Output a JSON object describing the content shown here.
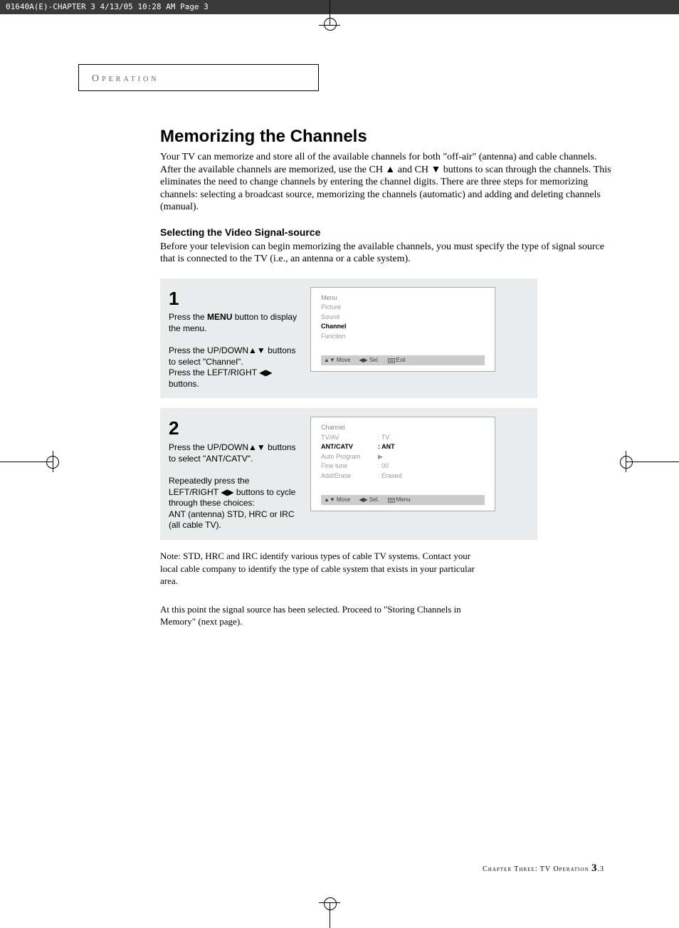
{
  "header_bar": "01640A(E)-CHAPTER 3  4/13/05  10:28 AM  Page 3",
  "section_label": "Operation",
  "title": "Memorizing the Channels",
  "intro": "Your TV can memorize and store all of the available channels for both \"off-air\" (antenna) and cable channels. After the available channels are memorized, use the CH ▲ and CH ▼ buttons to scan through the channels. This eliminates the need to change channels by entering the channel digits. There are three steps for memorizing channels: selecting a broadcast source, memorizing the channels (automatic) and adding and deleting channels (manual).",
  "subtitle": "Selecting the Video Signal-source",
  "sub_intro": "Before your television can begin memorizing the available channels, you must specify the type of signal source that is connected to the TV (i.e., an antenna or a cable system).",
  "step1": {
    "num": "1",
    "text1a": "Press the ",
    "text1b": "MENU",
    "text1c": " button to display the menu.",
    "text2": "Press the UP/DOWN▲▼ buttons to select \"Channel\".",
    "text3": "Press the LEFT/RIGHT ◀▶ buttons.",
    "menu": {
      "title": "Menu",
      "items": [
        "Picture",
        "Sound",
        "Channel",
        "Function"
      ],
      "highlighted": "Channel",
      "footer_move": "Move",
      "footer_sel": "Sel.",
      "footer_exit": "Exit"
    }
  },
  "step2": {
    "num": "2",
    "text1": "Press the UP/DOWN▲▼ buttons to select \"ANT/CATV\".",
    "text2": "Repeatedly press the LEFT/RIGHT ◀▶ buttons to cycle  through these choices:",
    "text3": "ANT (antenna) STD, HRC or IRC (all cable TV).",
    "menu": {
      "title": "Channel",
      "rows": [
        {
          "label": "TV/AV",
          "value": ": TV"
        },
        {
          "label": "ANT/CATV",
          "value": ": ANT",
          "highlighted": true
        },
        {
          "label": "Auto Program",
          "value": "▶"
        },
        {
          "label": "Fine tune",
          "value": ": 00"
        },
        {
          "label": "Add/Erase",
          "value": ": Erased"
        }
      ],
      "footer_move": "Move",
      "footer_sel": "Sel.",
      "footer_menu": "Menu"
    }
  },
  "note": "Note: STD, HRC and IRC  identify various types of cable TV systems. Contact your local cable company to identify the type of cable system that exists in your particular area.",
  "proceed": "At this point the signal source has been selected. Proceed to \"Storing Channels in Memory\" (next page).",
  "footer": {
    "text": "Chapter Three: TV Operation ",
    "pgnum": "3",
    "pgsub": ".3"
  }
}
